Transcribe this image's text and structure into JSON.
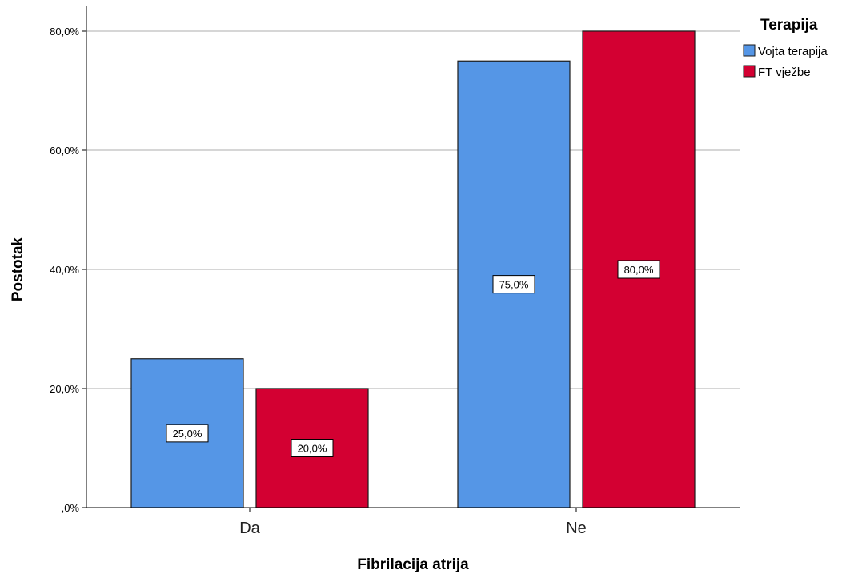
{
  "chart_data": {
    "type": "bar",
    "categories": [
      "Da",
      "Ne"
    ],
    "series": [
      {
        "name": "Vojta terapija",
        "values": [
          25.0,
          75.0
        ],
        "color": "#5596E6",
        "data_labels": [
          "25,0%",
          "75,0%"
        ]
      },
      {
        "name": "FT vježbe",
        "values": [
          20.0,
          80.0
        ],
        "color": "#D30032",
        "data_labels": [
          "20,0%",
          "80,0%"
        ]
      }
    ],
    "xlabel": "Fibrilacija atrija",
    "ylabel": "Postotak",
    "ylim": [
      0,
      80
    ],
    "yticks": [
      {
        "value": 0,
        "label": ",0%"
      },
      {
        "value": 20,
        "label": "20,0%"
      },
      {
        "value": 40,
        "label": "40,0%"
      },
      {
        "value": 60,
        "label": "60,0%"
      },
      {
        "value": 80,
        "label": "80,0%"
      }
    ],
    "grid": "horizontal",
    "legend": {
      "title": "Terapija",
      "position": "top-right"
    }
  }
}
